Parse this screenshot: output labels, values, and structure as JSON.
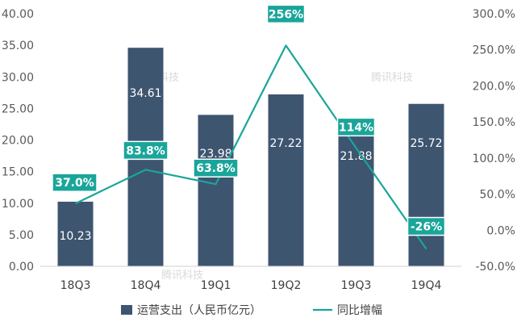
{
  "chart_data": {
    "type": "bar",
    "categories": [
      "18Q3",
      "18Q4",
      "19Q1",
      "19Q2",
      "19Q3",
      "19Q4"
    ],
    "series": [
      {
        "name": "运营支出（人民币亿元）",
        "type": "bar",
        "axis": "left",
        "values": [
          10.23,
          34.61,
          23.98,
          27.22,
          21.88,
          25.72
        ],
        "labels": [
          "10.23",
          "34.61",
          "23.98",
          "27.22",
          "21.88",
          "25.72"
        ]
      },
      {
        "name": "同比增幅",
        "type": "line",
        "axis": "right",
        "values": [
          37.0,
          83.8,
          63.8,
          256,
          114,
          -26
        ],
        "labels": [
          "37.0%",
          "83.8%",
          "63.8%",
          "256%",
          "114%",
          "-26%"
        ]
      }
    ],
    "y_left": {
      "ylim": [
        0,
        40
      ],
      "ticks": [
        "0.00",
        "5.00",
        "10.00",
        "15.00",
        "20.00",
        "25.00",
        "30.00",
        "35.00",
        "40.00"
      ]
    },
    "y_right": {
      "ylim": [
        -50,
        300
      ],
      "ticks": [
        "-50.0%",
        "0.0%",
        "50.0%",
        "100.0%",
        "150.0%",
        "200.0%",
        "250.0%",
        "300.0%"
      ]
    },
    "legend_position": "bottom",
    "grid": false,
    "watermark": "腾讯科技"
  },
  "colors": {
    "bar": "#3e5570",
    "line": "#1aa59a",
    "label_box": "#1aa59a"
  }
}
